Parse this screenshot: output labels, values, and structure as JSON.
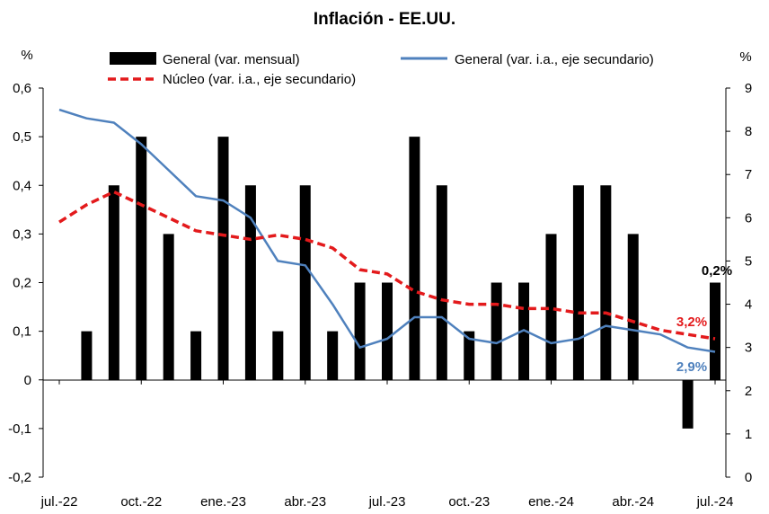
{
  "chart_data": {
    "type": "bar",
    "title": "Inflación - EE.UU.",
    "ylabel_left": "%",
    "ylabel_right": "%",
    "ylim_left": [
      -0.2,
      0.6
    ],
    "ylim_right": [
      0,
      9
    ],
    "yticks_left": [
      "-0,2",
      "-0,1",
      "0",
      "0,1",
      "0,2",
      "0,3",
      "0,4",
      "0,5",
      "0,6"
    ],
    "yticks_right": [
      "0",
      "1",
      "2",
      "3",
      "4",
      "5",
      "6",
      "7",
      "8",
      "9"
    ],
    "xtick_labels": [
      "jul.-22",
      "oct.-22",
      "ene.-23",
      "abr.-23",
      "jul.-23",
      "oct.-23",
      "ene.-24",
      "abr.-24",
      "jul.-24"
    ],
    "categories": [
      "jul.-22",
      "ago.-22",
      "sep.-22",
      "oct.-22",
      "nov.-22",
      "dic.-22",
      "ene.-23",
      "feb.-23",
      "mar.-23",
      "abr.-23",
      "may.-23",
      "jun.-23",
      "jul.-23",
      "ago.-23",
      "sep.-23",
      "oct.-23",
      "nov.-23",
      "dic.-23",
      "ene.-24",
      "feb.-24",
      "mar.-24",
      "abr.-24",
      "may.-24",
      "jun.-24",
      "jul.-24"
    ],
    "grid": false,
    "legend_position": "top",
    "series": [
      {
        "name": "General (var. mensual)",
        "kind": "bar",
        "axis": "left",
        "color": "#000000",
        "values": [
          0.0,
          0.1,
          0.4,
          0.5,
          0.3,
          0.1,
          0.5,
          0.4,
          0.1,
          0.4,
          0.1,
          0.2,
          0.2,
          0.5,
          0.4,
          0.1,
          0.2,
          0.2,
          0.3,
          0.4,
          0.4,
          0.3,
          0.0,
          -0.1,
          0.2
        ]
      },
      {
        "name": "General (var. i.a., eje secundario)",
        "kind": "line",
        "axis": "right",
        "color": "#4f81bd",
        "values": [
          8.5,
          8.3,
          8.2,
          7.7,
          7.1,
          6.5,
          6.4,
          6.0,
          5.0,
          4.9,
          4.0,
          3.0,
          3.2,
          3.7,
          3.7,
          3.2,
          3.1,
          3.4,
          3.1,
          3.2,
          3.5,
          3.4,
          3.3,
          3.0,
          2.9
        ]
      },
      {
        "name": "Núcleo (var. i.a., eje secundario)",
        "kind": "line",
        "axis": "right",
        "color": "#e31a1c",
        "dashed": true,
        "values": [
          5.9,
          6.3,
          6.6,
          6.3,
          6.0,
          5.7,
          5.6,
          5.5,
          5.6,
          5.5,
          5.3,
          4.8,
          4.7,
          4.3,
          4.1,
          4.0,
          4.0,
          3.9,
          3.9,
          3.8,
          3.8,
          3.6,
          3.4,
          3.3,
          3.2
        ]
      }
    ],
    "annotations": [
      {
        "text": "0,2%",
        "series": "General (var. mensual)",
        "color": "#000000"
      },
      {
        "text": "3,2%",
        "series": "Núcleo (var. i.a., eje secundario)",
        "color": "#e31a1c"
      },
      {
        "text": "2,9%",
        "series": "General (var. i.a., eje secundario)",
        "color": "#4f81bd"
      }
    ]
  }
}
